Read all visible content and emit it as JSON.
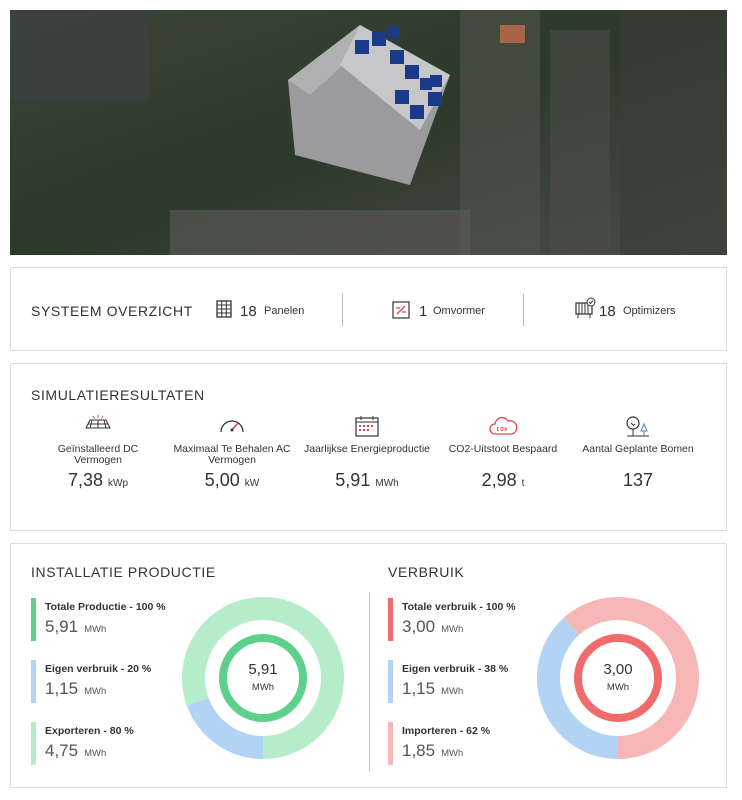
{
  "overview": {
    "title": "SYSTEEM OVERZICHT",
    "items": [
      {
        "count": 18,
        "label": "Panelen"
      },
      {
        "count": 1,
        "label": "Omvormer"
      },
      {
        "count": 18,
        "label": "Optimizers"
      }
    ]
  },
  "simulation": {
    "title": "SIMULATIERESULTATEN",
    "items": [
      {
        "label": "Geïnstalleerd DC Vermogen",
        "value": {
          "value": 7.38,
          "label": "7,38"
        },
        "unit": "kWp"
      },
      {
        "label": "Maximaal Te Behalen AC Vermogen",
        "value": {
          "value": 5.0,
          "label": "5,00"
        },
        "unit": "kW"
      },
      {
        "label": "Jaarlijkse Energieproductie",
        "value": {
          "value": 5.91,
          "label": "5,91"
        },
        "unit": "MWh"
      },
      {
        "label": "CO2-Uitstoot Bespaard",
        "value": {
          "value": 2.98,
          "label": "2,98"
        },
        "unit": "t"
      },
      {
        "label": "Aantal Geplante Bomen",
        "value": 137
      }
    ]
  },
  "production": {
    "title": "INSTALLATIE PRODUCTIE",
    "unit": "MWh",
    "entries": [
      {
        "label": "Totale Productie - 100 %",
        "value": {
          "value": 5.91,
          "label": "5,91"
        },
        "color": "#5dd08c"
      },
      {
        "label": "Eigen verbruik - 20 %",
        "value": {
          "value": 1.15,
          "label": "1,15"
        },
        "color": "#b3d3f5"
      },
      {
        "label": "Exporteren - 80 %",
        "value": {
          "value": 4.75,
          "label": "4,75"
        },
        "color": "#b5ecca"
      }
    ]
  },
  "consumption": {
    "title": "VERBRUIK",
    "unit": "MWh",
    "entries": [
      {
        "label": "Totale verbruik - 100 %",
        "value": {
          "value": 3.0,
          "label": "3,00"
        },
        "color": "#f06c6c"
      },
      {
        "label": "Eigen verbruik - 38 %",
        "value": {
          "value": 1.15,
          "label": "1,15"
        },
        "color": "#b3d3f5"
      },
      {
        "label": "Importeren - 62 %",
        "value": {
          "value": 1.85,
          "label": "1,85"
        },
        "color": "#f7b7b7"
      }
    ]
  }
}
